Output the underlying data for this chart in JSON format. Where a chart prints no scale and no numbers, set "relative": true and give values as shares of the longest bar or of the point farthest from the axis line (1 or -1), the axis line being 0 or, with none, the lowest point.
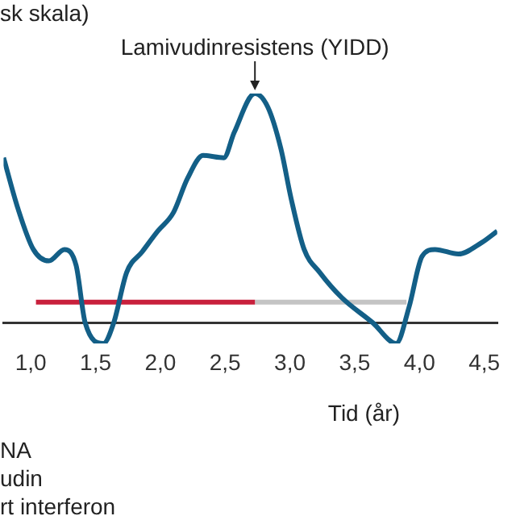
{
  "chart_data": {
    "type": "line",
    "relative": true,
    "ylabel": "sk skala)",
    "xlabel": "Tid (år)",
    "xlim": [
      0.79,
      4.6
    ],
    "xticks": [
      {
        "value": 1,
        "label": "1,0"
      },
      {
        "value": 1.5,
        "label": "1,5"
      },
      {
        "value": 2,
        "label": "2,0"
      },
      {
        "value": 2.5,
        "label": "2,5"
      },
      {
        "value": 3,
        "label": "3,0"
      },
      {
        "value": 3.5,
        "label": "3,5"
      },
      {
        "value": 4,
        "label": "4,0"
      },
      {
        "value": 4.5,
        "label": "4,5"
      }
    ],
    "marker": "none",
    "line_style": "solid",
    "grid": false,
    "annotations": [
      {
        "text": "Lamivudinresistens (YIDD)",
        "x": 2.73,
        "y": 1
      },
      "NA",
      "udin",
      "rt interferon"
    ],
    "series": [
      {
        "color": "#135f87",
        "x": [
          0.79,
          0.9,
          1.02,
          1.14,
          1.26,
          1.35,
          1.42,
          1.56,
          1.64,
          1.74,
          1.86,
          1.98,
          2.1,
          2.21,
          2.33,
          2.49,
          2.57,
          2.73,
          2.83,
          2.93,
          3.01,
          3.11,
          3.23,
          3.4,
          3.64,
          3.82,
          3.92,
          4.02,
          4.12,
          4.3,
          4.48,
          4.6
        ],
        "values": [
          0.72,
          0.5,
          0.32,
          0.27,
          0.32,
          0.25,
          0,
          -0.09,
          0,
          0.22,
          0.31,
          0.4,
          0.48,
          0.63,
          0.73,
          0.72,
          0.83,
          1,
          0.94,
          0.76,
          0.54,
          0.32,
          0.22,
          0.11,
          0,
          -0.09,
          0.07,
          0.29,
          0.32,
          0.3,
          0.35,
          0.4
        ]
      },
      {
        "color": "#c8203c",
        "x": [
          1.04,
          2.73
        ],
        "values": [
          0.09,
          0.09
        ]
      },
      {
        "color": "#c4c4c4",
        "x": [
          2.73,
          3.9
        ],
        "values": [
          0.09,
          0.09
        ]
      }
    ]
  }
}
